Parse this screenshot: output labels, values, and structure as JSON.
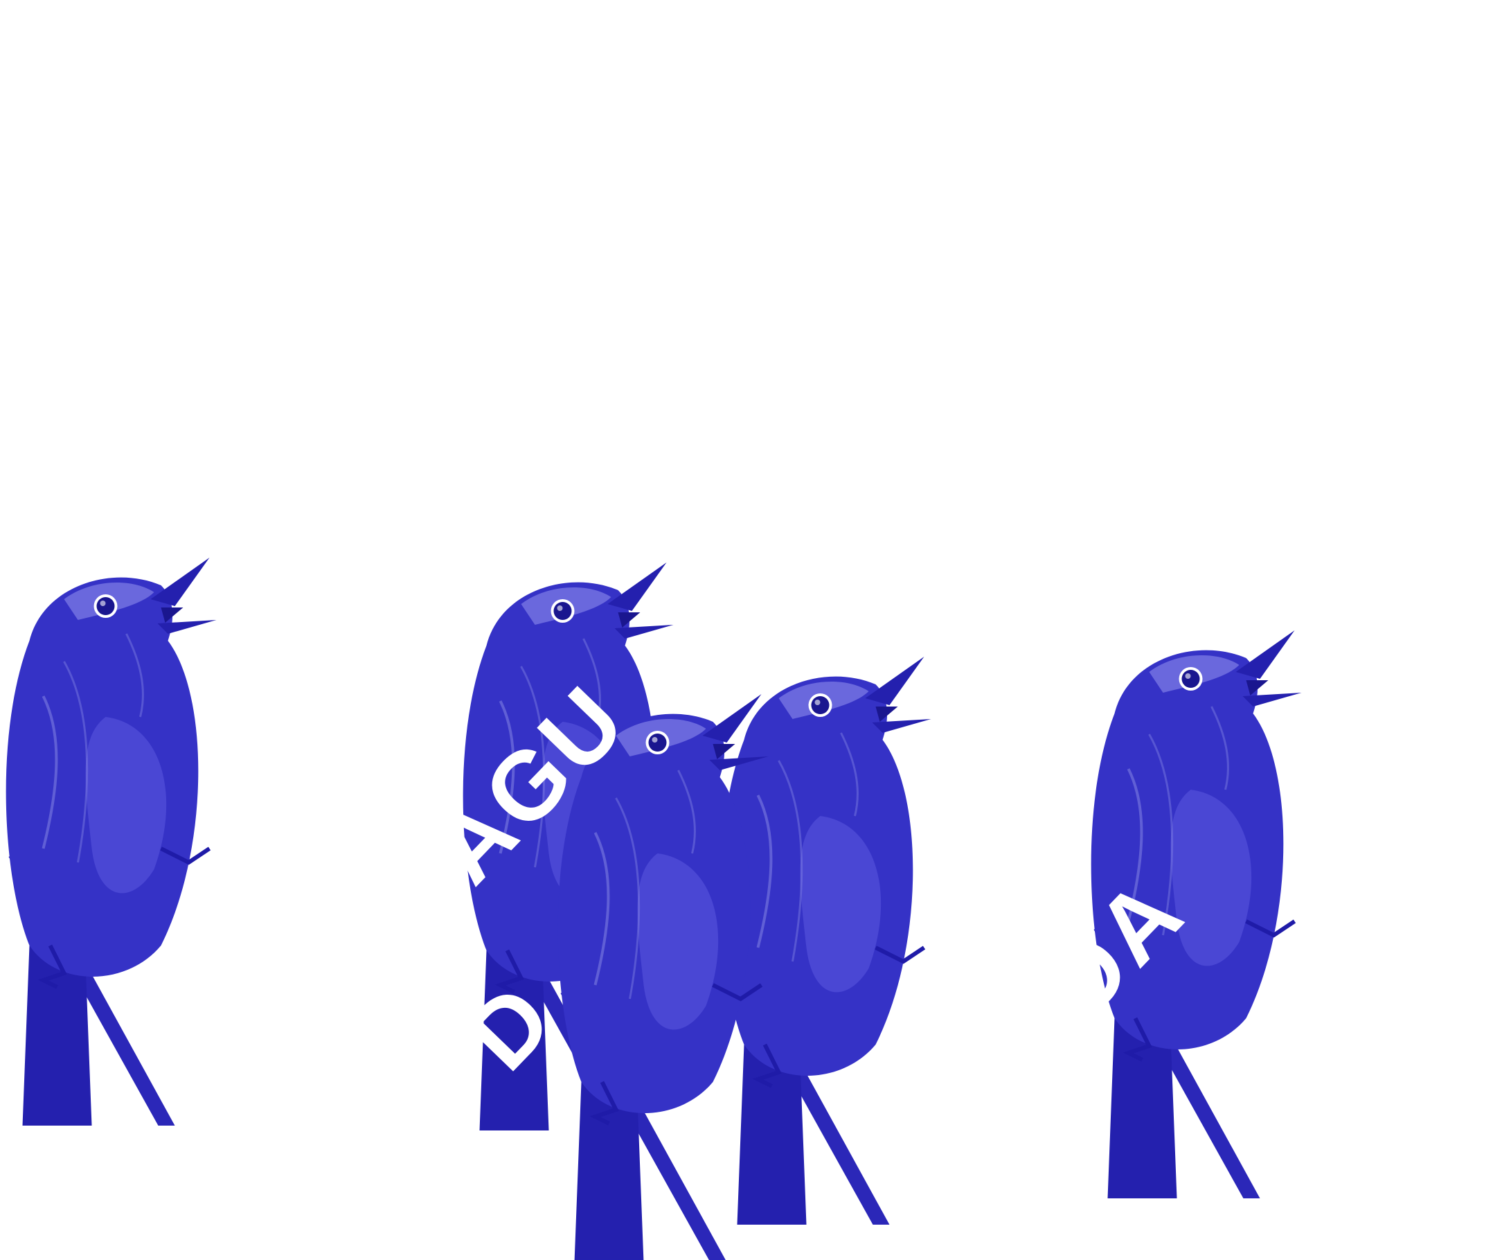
{
  "colors": {
    "background": "#ffffff",
    "bird_primary": "#3532c6",
    "bird_dark": "#1f1ba8",
    "bird_light": "#8b8be6",
    "lettering": "#ffffff"
  },
  "artwork": {
    "birds": [
      {
        "name": "singing-bird-1"
      },
      {
        "name": "singing-bird-2"
      },
      {
        "name": "singing-bird-3"
      },
      {
        "name": "singing-bird-4"
      },
      {
        "name": "singing-bird-5"
      }
    ],
    "lettering": [
      {
        "name": "lettering-agu",
        "text": "AGU"
      },
      {
        "name": "lettering-d",
        "text": "D"
      },
      {
        "name": "lettering-da",
        "text": "DA"
      }
    ]
  }
}
